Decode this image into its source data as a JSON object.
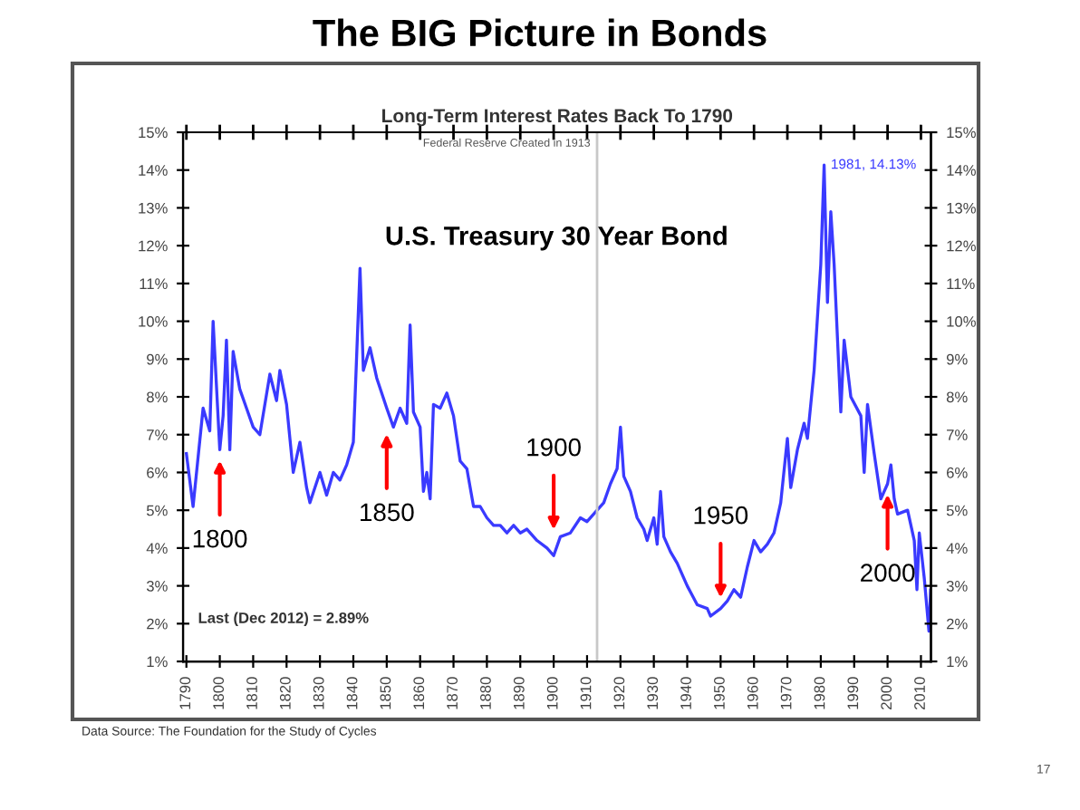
{
  "chart_data": {
    "type": "line",
    "title": "The BIG Picture in Bonds",
    "subtitle": "Long-Term Interest Rates Back To 1790",
    "x": [
      1790,
      1792,
      1795,
      1797,
      1798,
      1800,
      1801,
      1802,
      1803,
      1804,
      1806,
      1808,
      1810,
      1812,
      1815,
      1817,
      1818,
      1820,
      1822,
      1824,
      1826,
      1827,
      1830,
      1832,
      1834,
      1836,
      1838,
      1840,
      1842,
      1843,
      1845,
      1847,
      1850,
      1852,
      1854,
      1856,
      1857,
      1858,
      1860,
      1861,
      1862,
      1863,
      1864,
      1866,
      1868,
      1870,
      1872,
      1874,
      1876,
      1878,
      1880,
      1882,
      1884,
      1886,
      1888,
      1890,
      1892,
      1895,
      1898,
      1900,
      1902,
      1905,
      1908,
      1910,
      1913,
      1915,
      1917,
      1919,
      1920,
      1921,
      1923,
      1925,
      1927,
      1928,
      1930,
      1931,
      1932,
      1933,
      1935,
      1937,
      1940,
      1943,
      1946,
      1947,
      1950,
      1952,
      1954,
      1956,
      1958,
      1960,
      1962,
      1964,
      1966,
      1968,
      1970,
      1971,
      1973,
      1975,
      1976,
      1978,
      1980,
      1981,
      1982,
      1983,
      1984,
      1986,
      1987,
      1989,
      1992,
      1993,
      1994,
      1996,
      1998,
      2000,
      2001,
      2002,
      2003,
      2006,
      2007,
      2008,
      2008.8,
      2009.5,
      2010,
      2011,
      2012.4,
      2012.9
    ],
    "series": [
      {
        "color": "#3a3aff",
        "values": [
          6.5,
          5.1,
          7.7,
          7.1,
          10.0,
          6.6,
          7.5,
          9.5,
          6.6,
          9.2,
          8.2,
          7.7,
          7.2,
          7.0,
          8.6,
          7.9,
          8.7,
          7.8,
          6.0,
          6.8,
          5.6,
          5.2,
          6.0,
          5.4,
          6.0,
          5.8,
          6.2,
          6.8,
          11.4,
          8.7,
          9.3,
          8.5,
          7.7,
          7.2,
          7.7,
          7.3,
          9.9,
          7.6,
          7.2,
          5.5,
          6.0,
          5.3,
          7.8,
          7.7,
          8.1,
          7.5,
          6.3,
          6.1,
          5.1,
          5.1,
          4.8,
          4.6,
          4.6,
          4.4,
          4.6,
          4.4,
          4.5,
          4.2,
          4.0,
          3.8,
          4.3,
          4.4,
          4.8,
          4.7,
          5.0,
          5.2,
          5.7,
          6.1,
          7.2,
          5.9,
          5.5,
          4.8,
          4.5,
          4.2,
          4.8,
          4.1,
          5.5,
          4.3,
          3.9,
          3.6,
          3.0,
          2.5,
          2.4,
          2.2,
          2.4,
          2.6,
          2.9,
          2.7,
          3.5,
          4.2,
          3.9,
          4.1,
          4.4,
          5.2,
          6.9,
          5.6,
          6.6,
          7.3,
          6.9,
          8.7,
          11.5,
          14.13,
          10.5,
          12.9,
          11.5,
          7.6,
          9.5,
          8.0,
          7.5,
          6.0,
          7.8,
          6.5,
          5.3,
          5.7,
          6.2,
          5.3,
          4.9,
          5.0,
          4.6,
          4.2,
          2.9,
          4.4,
          4.0,
          3.2,
          1.8,
          2.89
        ]
      }
    ],
    "xlim": [
      1789,
      2013
    ],
    "xticks": [
      1790,
      1800,
      1810,
      1820,
      1830,
      1840,
      1850,
      1860,
      1870,
      1880,
      1890,
      1900,
      1910,
      1920,
      1930,
      1940,
      1950,
      1960,
      1970,
      1980,
      1990,
      2000,
      2010
    ],
    "ylim": [
      1,
      15
    ],
    "yticks": [
      {
        "value": 1,
        "label": "1%"
      },
      {
        "value": 2,
        "label": "2%"
      },
      {
        "value": 3,
        "label": "3%"
      },
      {
        "value": 4,
        "label": "4%"
      },
      {
        "value": 5,
        "label": "5%"
      },
      {
        "value": 6,
        "label": "6%"
      },
      {
        "value": 7,
        "label": "7%"
      },
      {
        "value": 8,
        "label": "8%"
      },
      {
        "value": 9,
        "label": "9%"
      },
      {
        "value": 10,
        "label": "10%"
      },
      {
        "value": 11,
        "label": "11%"
      },
      {
        "value": 12,
        "label": "12%"
      },
      {
        "value": 13,
        "label": "13%"
      },
      {
        "value": 14,
        "label": "14%"
      },
      {
        "value": 15,
        "label": "15%"
      }
    ],
    "y2lim": [
      1,
      15
    ],
    "y2ticks": [
      {
        "value": 1,
        "label": "1%"
      },
      {
        "value": 2,
        "label": "2%"
      },
      {
        "value": 3,
        "label": "3%"
      },
      {
        "value": 4,
        "label": "4%"
      },
      {
        "value": 5,
        "label": "5%"
      },
      {
        "value": 6,
        "label": "6%"
      },
      {
        "value": 7,
        "label": "7%"
      },
      {
        "value": 8,
        "label": "8%"
      },
      {
        "value": 9,
        "label": "9%"
      },
      {
        "value": 10,
        "label": "10%"
      },
      {
        "value": 11,
        "label": "11%"
      },
      {
        "value": 12,
        "label": "12%"
      },
      {
        "value": 13,
        "label": "13%"
      },
      {
        "value": 14,
        "label": "14%"
      },
      {
        "value": 15,
        "label": "15%"
      }
    ],
    "ref_lines": [
      {
        "axis": "x",
        "value": 1913,
        "label": "Federal Reserve Created in 1913",
        "color": "#c8c8c8"
      }
    ],
    "annotations": [
      {
        "text": "1981, 14.13%",
        "x": 1981,
        "y": 14.13
      },
      {
        "text": "1800",
        "x": 1800,
        "y": 6.6
      },
      {
        "text": "1850",
        "x": 1850,
        "y": 7.3
      },
      {
        "text": "1900",
        "x": 1900,
        "y": 4.2
      },
      {
        "text": "1950",
        "x": 1950,
        "y": 2.4
      },
      {
        "text": "2000",
        "x": 2000,
        "y": 5.7
      },
      "U.S. Treasury 30 Year Bond",
      "Last (Dec 2012) = 2.89%",
      "Data Source: The Foundation for the Study of Cycles",
      "17"
    ],
    "grid": false,
    "legend": false,
    "marker": "none",
    "line_style": "solid"
  }
}
